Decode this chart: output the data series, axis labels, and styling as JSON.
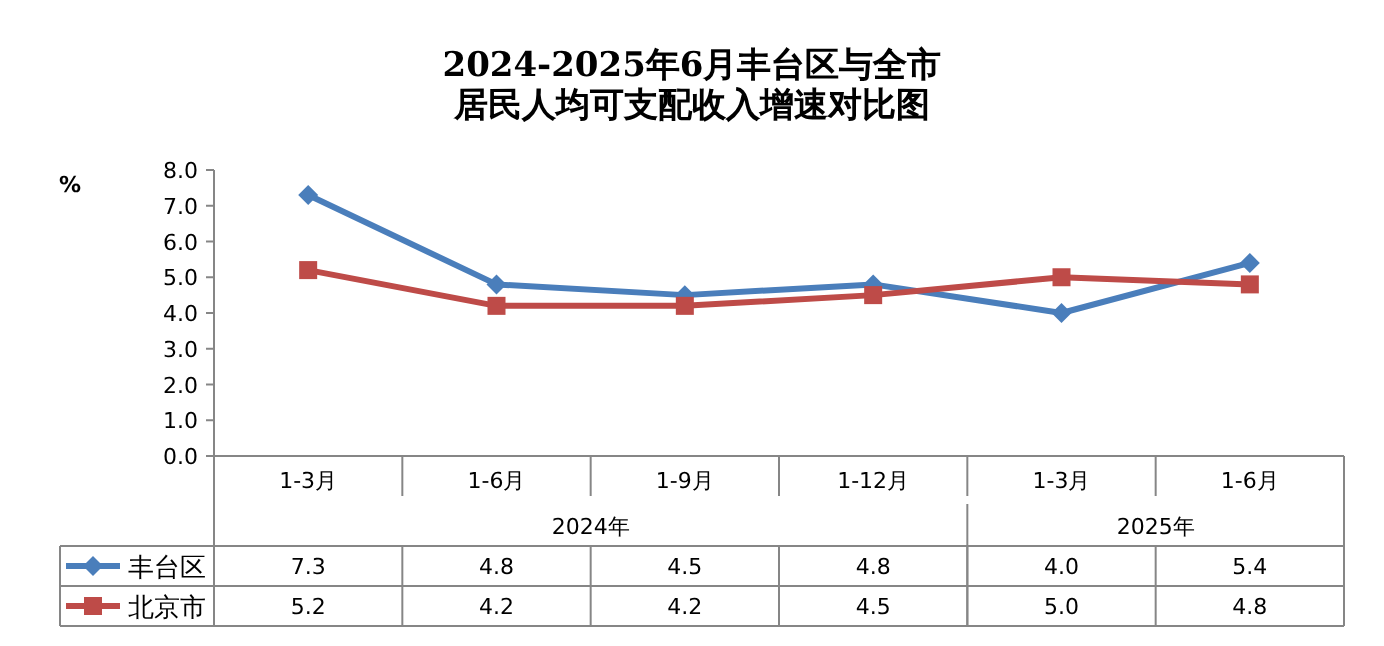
{
  "chart_data": {
    "type": "line",
    "title": "2024-2025年6月丰台区与全市",
    "subtitle": "居民人均可支配收入增速对比图",
    "ylabel": "%",
    "categories": [
      "1-3月",
      "1-6月",
      "1-9月",
      "1-12月",
      "1-3月",
      "1-6月"
    ],
    "annotations": [
      "2024年",
      "2025年"
    ],
    "series": [
      {
        "name": "丰台区",
        "color": "#4a7ebb",
        "marker": "diamond",
        "values": [
          7.3,
          4.8,
          4.5,
          4.8,
          4.0,
          5.4
        ],
        "value_labels": [
          "7.3",
          "4.8",
          "4.5",
          "4.8",
          "4.0",
          "5.4"
        ]
      },
      {
        "name": "北京市",
        "color": "#be4b48",
        "marker": "square",
        "values": [
          5.2,
          4.2,
          4.2,
          4.5,
          5.0,
          4.8
        ],
        "value_labels": [
          "5.2",
          "4.2",
          "4.2",
          "4.5",
          "5.0",
          "4.8"
        ]
      }
    ],
    "ylim": [
      0,
      8
    ],
    "yticks": [
      {
        "value": 0,
        "label": "0.0"
      },
      {
        "value": 1,
        "label": "1.0"
      },
      {
        "value": 2,
        "label": "2.0"
      },
      {
        "value": 3,
        "label": "3.0"
      },
      {
        "value": 4,
        "label": "4.0"
      },
      {
        "value": 5,
        "label": "5.0"
      },
      {
        "value": 6,
        "label": "6.0"
      },
      {
        "value": 7,
        "label": "7.0"
      },
      {
        "value": 8,
        "label": "8.0"
      }
    ],
    "legend": "bottom left",
    "grid": false
  }
}
